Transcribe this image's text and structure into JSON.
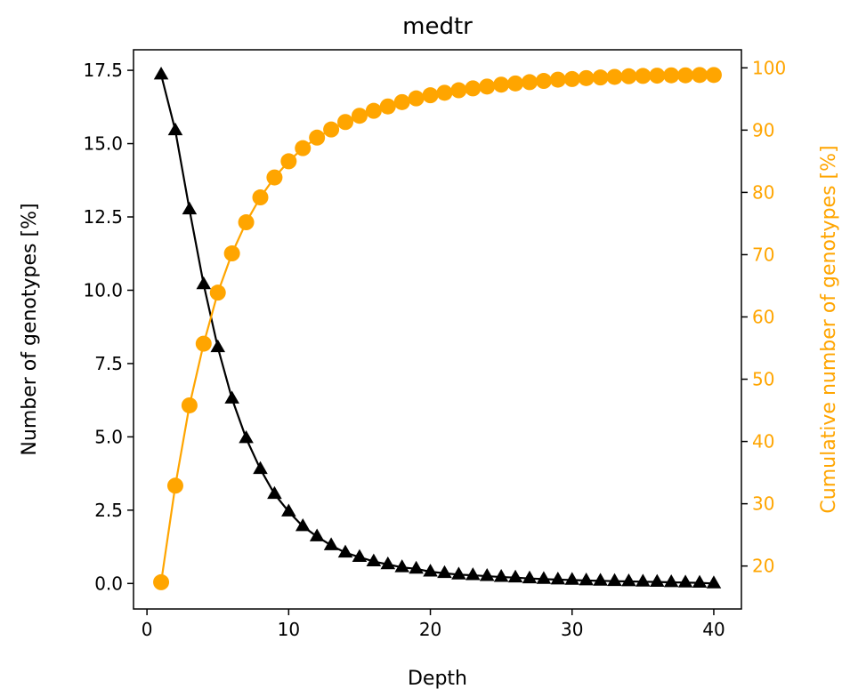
{
  "chart_data": {
    "type": "line",
    "title": "medtr",
    "xlabel": "Depth",
    "ylabel_left": "Number of genotypes [%]",
    "ylabel_right": "Cumulative number of genotypes [%]",
    "xlim": [
      -0.95,
      41.95
    ],
    "xticks": [
      0,
      10,
      20,
      30,
      40
    ],
    "ylim_left": [
      -0.87,
      18.2
    ],
    "yticks_left": [
      0.0,
      2.5,
      5.0,
      7.5,
      10.0,
      12.5,
      15.0,
      17.5
    ],
    "ytick_labels_left": [
      "0.0",
      "2.5",
      "5.0",
      "7.5",
      "10.0",
      "12.5",
      "15.0",
      "17.5"
    ],
    "ylim_right": [
      13.1,
      102.9
    ],
    "yticks_right": [
      20,
      30,
      40,
      50,
      60,
      70,
      80,
      90,
      100
    ],
    "grid": false,
    "colors": {
      "left_series": "#000000",
      "right_series": "#ffa500"
    },
    "x": [
      1,
      2,
      3,
      4,
      5,
      6,
      7,
      8,
      9,
      10,
      11,
      12,
      13,
      14,
      15,
      16,
      17,
      18,
      19,
      20,
      21,
      22,
      23,
      24,
      25,
      26,
      27,
      28,
      29,
      30,
      31,
      32,
      33,
      34,
      35,
      36,
      37,
      38,
      39,
      40
    ],
    "series": [
      {
        "axis": "left",
        "marker": "triangle",
        "color": "#000000",
        "values": [
          17.35,
          15.45,
          12.75,
          10.2,
          8.05,
          6.3,
          4.95,
          3.9,
          3.05,
          2.45,
          1.95,
          1.6,
          1.3,
          1.05,
          0.9,
          0.75,
          0.65,
          0.55,
          0.5,
          0.4,
          0.35,
          0.3,
          0.28,
          0.25,
          0.22,
          0.2,
          0.17,
          0.15,
          0.13,
          0.12,
          0.1,
          0.09,
          0.08,
          0.07,
          0.06,
          0.05,
          0.04,
          0.03,
          0.02,
          0.0
        ]
      },
      {
        "axis": "right",
        "marker": "circle",
        "color": "#ffa500",
        "values": [
          17.4,
          32.9,
          45.8,
          55.7,
          63.9,
          70.2,
          75.2,
          79.2,
          82.4,
          85.0,
          87.1,
          88.8,
          90.1,
          91.3,
          92.3,
          93.1,
          93.8,
          94.5,
          95.1,
          95.6,
          96.0,
          96.4,
          96.7,
          97.0,
          97.3,
          97.5,
          97.7,
          97.9,
          98.1,
          98.2,
          98.35,
          98.45,
          98.55,
          98.65,
          98.7,
          98.75,
          98.8,
          98.8,
          98.85,
          98.85
        ]
      }
    ]
  }
}
